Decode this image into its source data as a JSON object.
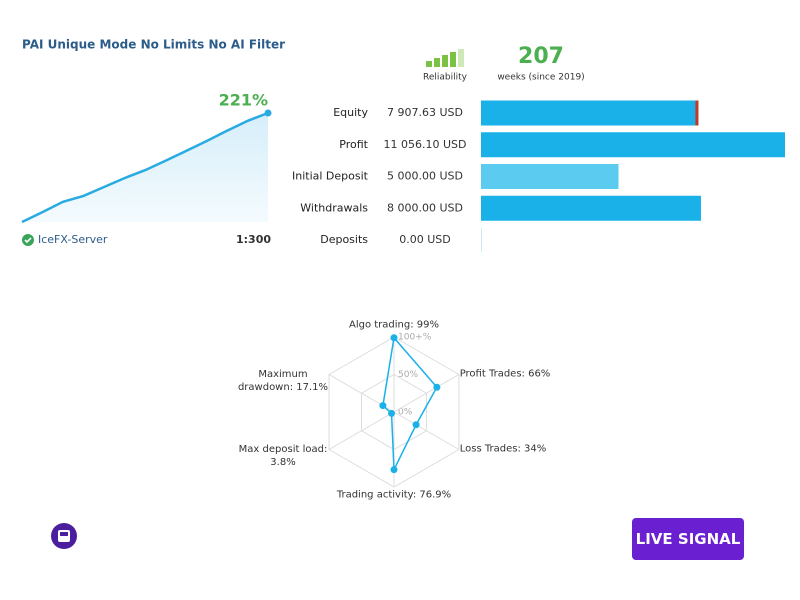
{
  "title": "PAI Unique Mode No Limits No AI Filter",
  "reliability": {
    "label": "Reliability",
    "color": "#7cc242"
  },
  "weeks": {
    "value": "207",
    "caption": "weeks (since 2019)"
  },
  "growth": {
    "label": "221%",
    "color": "#29abe2",
    "values": [
      0,
      20,
      41,
      53,
      71,
      89,
      105,
      124,
      144,
      164,
      185,
      205,
      221
    ]
  },
  "server": "IceFX-Server",
  "leverage": "1:300",
  "balances": [
    {
      "label": "Equity",
      "value": 7907.63,
      "value_label": "7 907.63 USD",
      "color": "#1ab0e8",
      "end_color": "#c0392b"
    },
    {
      "label": "Profit",
      "value": 11056.1,
      "value_label": "11 056.10 USD",
      "color": "#1ab0e8"
    },
    {
      "label": "Initial Deposit",
      "value": 5000.0,
      "value_label": "5 000.00 USD",
      "color": "#5ccbf0"
    },
    {
      "label": "Withdrawals",
      "value": 8000.0,
      "value_label": "8 000.00 USD",
      "color": "#1ab0e8"
    },
    {
      "label": "Deposits",
      "value": 0.0,
      "value_label": "0.00 USD",
      "color": "#1ab0e8"
    }
  ],
  "radar": {
    "color": "#1ab0e8",
    "axes": [
      {
        "label": "Algo trading: 99%",
        "value": 99
      },
      {
        "label": "Profit Trades: 66%",
        "value": 66
      },
      {
        "label": "Loss Trades: 34%",
        "value": 34
      },
      {
        "label": "Trading activity: 76.9%",
        "value": 76.9
      },
      {
        "label": "Max deposit load: 3.8%",
        "value": 3.8
      },
      {
        "label": "Maximum drawdown: 17.1%",
        "value": 17.1
      }
    ],
    "rticks": [
      {
        "value": 0,
        "label": "0%"
      },
      {
        "value": 50,
        "label": "50%"
      },
      {
        "value": 100,
        "label": "100+%"
      }
    ]
  },
  "button": "LIVE SIGNAL"
}
